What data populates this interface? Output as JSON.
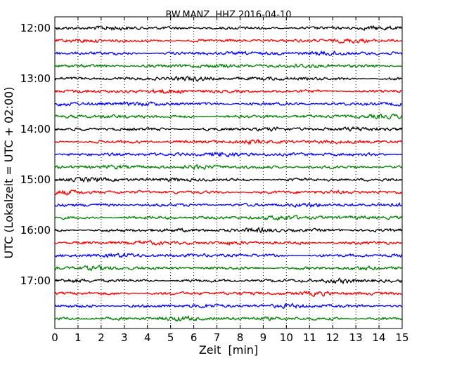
{
  "chart_data": {
    "type": "line",
    "title": "BW.MANZ..HHZ 2016-04-10",
    "xlabel": "Zeit  [min]",
    "ylabel": "UTC (Lokalzeit = UTC + 02:00)",
    "xlim": [
      0,
      15
    ],
    "x_ticks": [
      "0",
      "1",
      "2",
      "3",
      "4",
      "5",
      "6",
      "7",
      "8",
      "9",
      "10",
      "11",
      "12",
      "13",
      "14",
      "15"
    ],
    "y_ticks": [
      "12:00",
      "13:00",
      "14:00",
      "15:00",
      "16:00",
      "17:00"
    ],
    "grid": "vertical dotted",
    "trace_interval_minutes": 15,
    "trace_count": 24,
    "trace_colors": [
      "#000000",
      "#ff0000",
      "#0000ff",
      "#008000"
    ]
  }
}
